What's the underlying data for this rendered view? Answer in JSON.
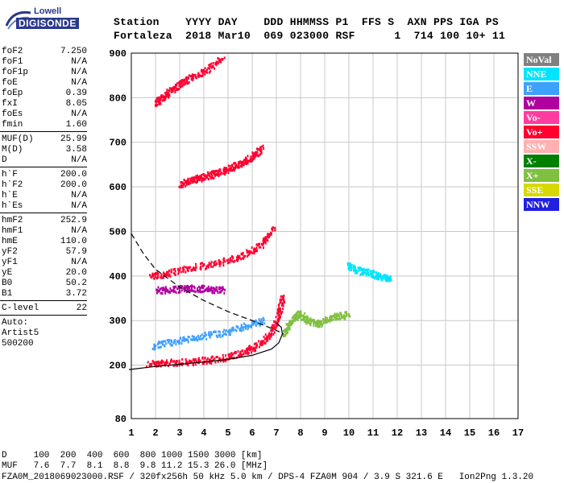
{
  "logo": {
    "top": "Lowell",
    "main": "DIGISONDE"
  },
  "header": {
    "row1": "Station    YYYY DAY    DDD HHMMSS P1  FFS S  AXN PPS IGA PS",
    "row2": "Fortaleza  2018 Mar10  069 023000 RSF      1  714 100 10+ 11"
  },
  "params_group1": [
    {
      "name": "foF2",
      "value": "7.250"
    },
    {
      "name": "foF1",
      "value": "N/A"
    },
    {
      "name": "foF1p",
      "value": "N/A"
    },
    {
      "name": "foE",
      "value": "N/A"
    },
    {
      "name": "foEp",
      "value": "0.39"
    },
    {
      "name": "fxI",
      "value": "8.05"
    },
    {
      "name": "foEs",
      "value": "N/A"
    },
    {
      "name": "fmin",
      "value": "1.60"
    }
  ],
  "params_group2": [
    {
      "name": "MUF(D)",
      "value": "25.99"
    },
    {
      "name": "M(D)",
      "value": "3.58"
    },
    {
      "name": "D",
      "value": "N/A"
    }
  ],
  "params_group3": [
    {
      "name": "h`F",
      "value": "200.0"
    },
    {
      "name": "h`F2",
      "value": "200.0"
    },
    {
      "name": "h`E",
      "value": "N/A"
    },
    {
      "name": "h`Es",
      "value": "N/A"
    }
  ],
  "params_group4": [
    {
      "name": "hmF2",
      "value": "252.9"
    },
    {
      "name": "hmF1",
      "value": "N/A"
    },
    {
      "name": "hmE",
      "value": "110.0"
    },
    {
      "name": "yF2",
      "value": "57.9"
    },
    {
      "name": "yF1",
      "value": "N/A"
    },
    {
      "name": "yE",
      "value": "20.0"
    },
    {
      "name": "B0",
      "value": "50.2"
    },
    {
      "name": "B1",
      "value": "3.72"
    }
  ],
  "params_group5": [
    {
      "name": "C-level",
      "value": "22"
    }
  ],
  "auto": {
    "line1": "Auto:",
    "line2": "Artist5",
    "line3": "500200"
  },
  "legend": [
    {
      "label": "NoVal",
      "color": "#808080"
    },
    {
      "label": "NNE",
      "color": "#00e5ff"
    },
    {
      "label": "E",
      "color": "#3ea0ff"
    },
    {
      "label": "W",
      "color": "#b000a0"
    },
    {
      "label": "Vo-",
      "color": "#ff3ca0"
    },
    {
      "label": "Vo+",
      "color": "#ff0030"
    },
    {
      "label": "SSW",
      "color": "#ffb0b0"
    },
    {
      "label": "X-",
      "color": "#008000"
    },
    {
      "label": "X+",
      "color": "#80c040"
    },
    {
      "label": "SSE",
      "color": "#d8d800"
    },
    {
      "label": "NNW",
      "color": "#2020e0"
    }
  ],
  "footer": {
    "line1": "D     100  200  400  600  800 1000 1500 3000 [km]",
    "line2": "MUF   7.6  7.7  8.1  8.8  9.8 11.2 15.3 26.0 [MHz]",
    "line3": "FZA0M_2018069023000.RSF / 320fx256h 50 kHz 5.0 km / DPS-4 FZA0M 904 / 3.9 S 321.6 E   Ion2Png 1.3.20"
  },
  "chart_data": {
    "type": "scatter",
    "xlabel": "",
    "ylabel": "",
    "x_ticks": [
      "1",
      "2",
      "3",
      "4",
      "5",
      "6",
      "7",
      "8",
      "9",
      "10",
      "11",
      "12",
      "13",
      "14",
      "15",
      "16",
      "17"
    ],
    "y_ticks": [
      "80",
      "200",
      "300",
      "400",
      "500",
      "600",
      "700",
      "800",
      "900"
    ],
    "xlim": [
      1,
      17
    ],
    "ylim": [
      80,
      900
    ],
    "grid": true,
    "traces": [
      {
        "name": "O-trace F2",
        "color": "#ff0030",
        "x": [
          1.7,
          2.5,
          3.5,
          4.5,
          5.5,
          6.2,
          6.8,
          7.1,
          7.25
        ],
        "y": [
          205,
          207,
          210,
          215,
          228,
          245,
          275,
          320,
          360
        ]
      },
      {
        "name": "O-trace 2F",
        "color": "#ff0030",
        "x": [
          1.8,
          2.5,
          3.5,
          4.5,
          5.5,
          6.3,
          6.9
        ],
        "y": [
          400,
          408,
          420,
          430,
          445,
          470,
          510
        ]
      },
      {
        "name": "O-trace 3F",
        "color": "#ff0030",
        "x": [
          3.0,
          3.5,
          4.0,
          4.5,
          5.0,
          5.5,
          6.0,
          6.4
        ],
        "y": [
          608,
          618,
          625,
          632,
          642,
          655,
          670,
          690
        ]
      },
      {
        "name": "O-trace 4F",
        "color": "#ff0030",
        "x": [
          2.0,
          2.3,
          2.8,
          3.3,
          4.0,
          4.8
        ],
        "y": [
          790,
          805,
          825,
          842,
          862,
          890
        ]
      },
      {
        "name": "X-trace F2",
        "color": "#80c040",
        "x": [
          7.3,
          7.6,
          7.9,
          8.3,
          8.8,
          9.3,
          10.0
        ],
        "y": [
          270,
          300,
          320,
          300,
          295,
          310,
          315
        ]
      },
      {
        "name": "NNE echoes",
        "color": "#00e5ff",
        "x": [
          9.9,
          10.3,
          10.8,
          11.3,
          11.7
        ],
        "y": [
          425,
          415,
          410,
          400,
          395
        ]
      },
      {
        "name": "E echoes",
        "color": "#3ea0ff",
        "x": [
          1.9,
          2.8,
          3.8,
          4.8,
          5.8,
          6.5
        ],
        "y": [
          245,
          255,
          265,
          275,
          290,
          305
        ]
      },
      {
        "name": "W echoes",
        "color": "#b000a0",
        "x": [
          2.0,
          2.8,
          3.5,
          4.2,
          4.8
        ],
        "y": [
          370,
          372,
          375,
          372,
          370
        ]
      }
    ],
    "profile_curve": {
      "x": [
        0.9,
        2.0,
        3.0,
        4.0,
        5.0,
        6.0,
        6.8,
        7.1,
        7.25,
        7.2,
        7.0
      ],
      "y": [
        190,
        197,
        202,
        207,
        213,
        222,
        236,
        250,
        270,
        285,
        295
      ]
    },
    "muf_curve": {
      "x": [
        1.0,
        1.5,
        2.0,
        3.0,
        4.0,
        5.0,
        6.0,
        7.0,
        7.3
      ],
      "y": [
        495,
        450,
        415,
        375,
        345,
        320,
        300,
        278,
        270
      ]
    }
  }
}
